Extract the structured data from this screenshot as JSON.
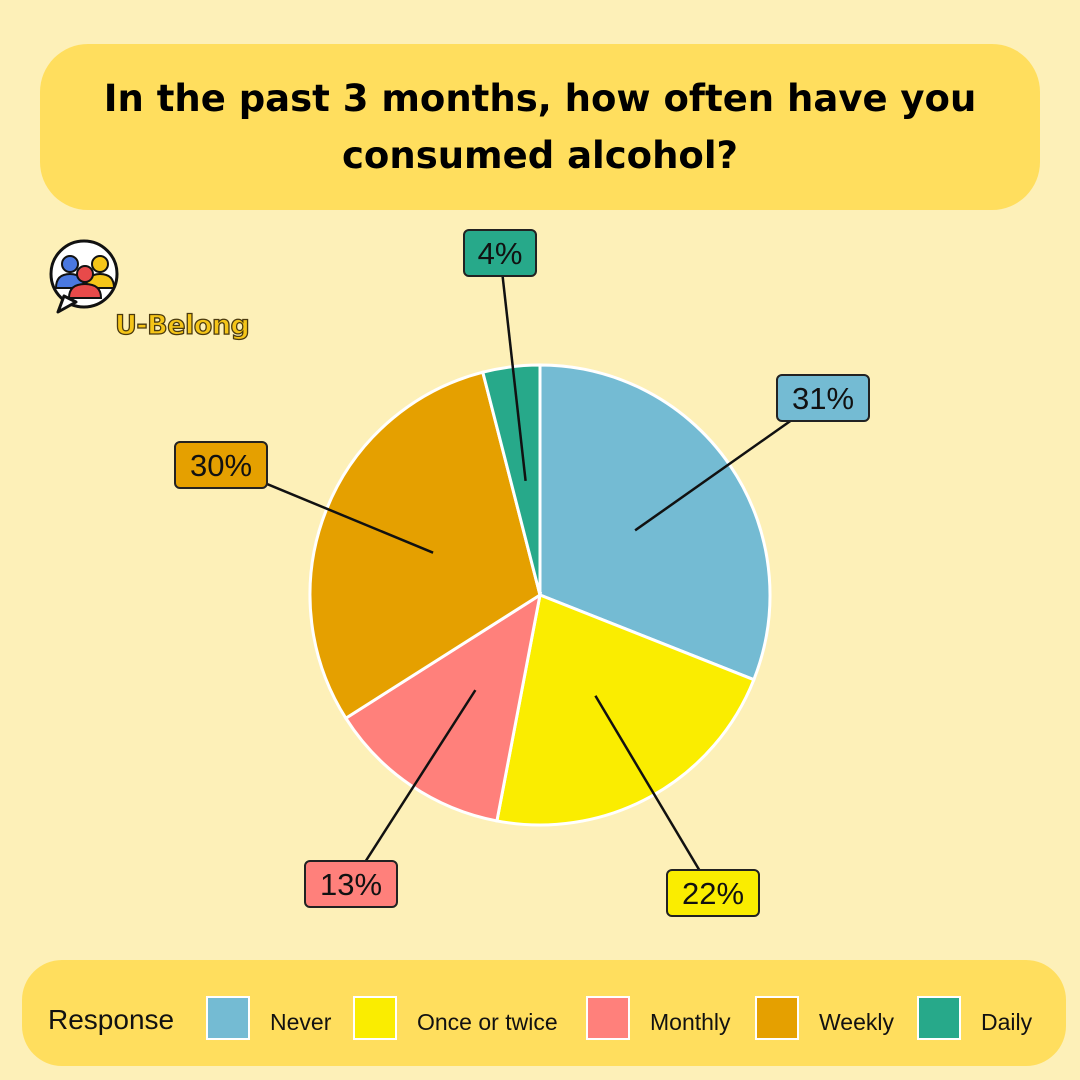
{
  "title": "In the past 3 months, how often have you consumed alcohol?",
  "logo": {
    "icon": "people-group-icon",
    "text": "U-Belong"
  },
  "chart_data": {
    "type": "pie",
    "title": "In the past 3 months, how often have you consumed alcohol?",
    "legend_title": "Response",
    "legend_placement": "bottom",
    "slices": [
      {
        "name": "Never",
        "value": 31,
        "label": "31%",
        "color": "#74BBD3"
      },
      {
        "name": "Once or twice",
        "value": 22,
        "label": "22%",
        "color": "#FAED00"
      },
      {
        "name": "Monthly",
        "value": 13,
        "label": "13%",
        "color": "#FF807B"
      },
      {
        "name": "Weekly",
        "value": 30,
        "label": "30%",
        "color": "#E5A000"
      },
      {
        "name": "Daily",
        "value": 4,
        "label": "4%",
        "color": "#27A98A"
      }
    ]
  }
}
